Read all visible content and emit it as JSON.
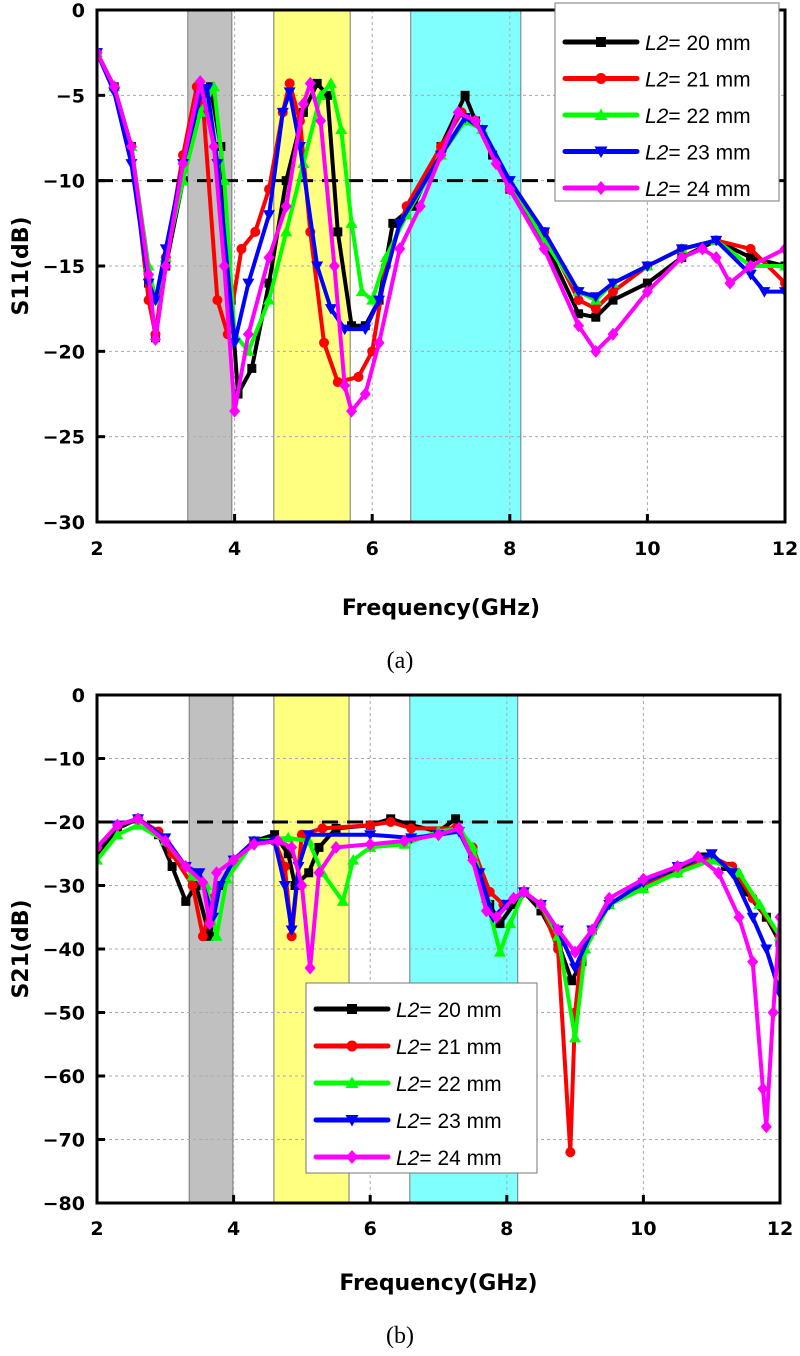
{
  "chart_data": [
    {
      "type": "line",
      "caption": "(a)",
      "xlabel": "Frequency(GHz)",
      "ylabel": "S11(dB)",
      "xlim": [
        2,
        12
      ],
      "ylim": [
        -30,
        0
      ],
      "xticks": [
        2,
        4,
        6,
        8,
        10,
        12
      ],
      "yticks": [
        0,
        -5,
        -10,
        -15,
        -20,
        -25,
        -30
      ],
      "grid": true,
      "threshold": -10,
      "legend_position": "top-right",
      "bands": [
        {
          "from": 3.32,
          "to": 3.96,
          "color": "#c0c0c0"
        },
        {
          "from": 4.57,
          "to": 5.68,
          "color": "#ffff80"
        },
        {
          "from": 6.56,
          "to": 8.16,
          "color": "#80ffff"
        }
      ],
      "series": [
        {
          "name": "L2= 20 mm",
          "color": "#000000",
          "marker": "square",
          "x": [
            2,
            2.25,
            2.5,
            2.75,
            2.85,
            3.0,
            3.25,
            3.5,
            3.65,
            3.8,
            3.95,
            4.05,
            4.25,
            4.5,
            4.75,
            5.0,
            5.2,
            5.35,
            5.5,
            5.7,
            5.9,
            6.1,
            6.3,
            6.6,
            7.0,
            7.35,
            7.5,
            7.75,
            8.0,
            8.5,
            9.0,
            9.25,
            9.5,
            10.0,
            10.5,
            11.0,
            11.5,
            12
          ],
          "y": [
            -2.5,
            -4.5,
            -8,
            -16,
            -19.2,
            -15,
            -10,
            -5.5,
            -4.5,
            -8,
            -17,
            -22.5,
            -21,
            -16,
            -10,
            -6,
            -4.3,
            -5,
            -13,
            -18.5,
            -18.5,
            -17,
            -12.5,
            -11.5,
            -8,
            -5,
            -6.5,
            -8.5,
            -10.5,
            -13.5,
            -17.8,
            -18,
            -17,
            -16,
            -14.5,
            -13.5,
            -14.5,
            -15
          ]
        },
        {
          "name": "L2= 21 mm",
          "color": "#ff0000",
          "marker": "circle",
          "x": [
            2,
            2.25,
            2.5,
            2.75,
            2.85,
            3.0,
            3.25,
            3.45,
            3.55,
            3.75,
            3.9,
            4.1,
            4.3,
            4.5,
            4.7,
            4.8,
            4.95,
            5.1,
            5.3,
            5.5,
            5.8,
            6.0,
            6.2,
            6.5,
            7.0,
            7.3,
            7.5,
            8.0,
            8.5,
            9.0,
            9.25,
            9.5,
            10,
            10.5,
            11,
            11.5,
            12
          ],
          "y": [
            -2.5,
            -4.5,
            -8,
            -17,
            -19,
            -14.5,
            -8.5,
            -4.5,
            -6,
            -17,
            -19,
            -14,
            -13,
            -10.5,
            -6,
            -4.3,
            -6.5,
            -13,
            -19.5,
            -21.8,
            -21.5,
            -20,
            -15,
            -11.5,
            -8,
            -6,
            -6.5,
            -10.5,
            -13,
            -17,
            -17.5,
            -16.5,
            -15,
            -14,
            -13.5,
            -14,
            -16
          ]
        },
        {
          "name": "L2= 22 mm",
          "color": "#00ff00",
          "marker": "triangle-up",
          "x": [
            2,
            2.25,
            2.5,
            2.75,
            2.85,
            3.0,
            3.25,
            3.5,
            3.7,
            3.85,
            4.0,
            4.2,
            4.5,
            4.75,
            5.0,
            5.25,
            5.4,
            5.55,
            5.7,
            5.85,
            6.0,
            6.2,
            6.5,
            7.0,
            7.35,
            7.6,
            8.0,
            8.5,
            9.0,
            9.25,
            9.5,
            10,
            10.5,
            11,
            11.5,
            12
          ],
          "y": [
            -2.5,
            -4.5,
            -8,
            -15,
            -17,
            -14.5,
            -10,
            -6,
            -4.5,
            -10,
            -19,
            -20,
            -17,
            -13,
            -9,
            -5,
            -4.3,
            -7,
            -12.5,
            -16.5,
            -17,
            -14.5,
            -12,
            -8.5,
            -6.5,
            -7,
            -10,
            -13.5,
            -16.5,
            -17,
            -16,
            -15,
            -14,
            -13.5,
            -15,
            -15
          ]
        },
        {
          "name": "L2= 23 mm",
          "color": "#0000ff",
          "marker": "triangle-down",
          "x": [
            2,
            2.25,
            2.5,
            2.75,
            2.85,
            3.0,
            3.25,
            3.5,
            3.6,
            3.75,
            4.0,
            4.2,
            4.5,
            4.7,
            4.8,
            4.95,
            5.2,
            5.4,
            5.6,
            5.9,
            6.1,
            6.4,
            7.0,
            7.35,
            7.6,
            8.0,
            8.5,
            9.0,
            9.25,
            9.5,
            10,
            10.5,
            11,
            11.5,
            11.7,
            12
          ],
          "y": [
            -2.5,
            -4.8,
            -9,
            -16,
            -17,
            -14,
            -9,
            -5,
            -4.6,
            -9,
            -19.5,
            -16,
            -12,
            -6,
            -4.8,
            -8,
            -15,
            -17.5,
            -18.7,
            -18.7,
            -17,
            -12.5,
            -8.5,
            -6.3,
            -7,
            -10,
            -13,
            -16.5,
            -16.8,
            -16,
            -15,
            -14,
            -13.5,
            -15.5,
            -16.5,
            -16.5
          ]
        },
        {
          "name": "L2= 24 mm",
          "color": "#ff00ff",
          "marker": "diamond",
          "x": [
            2,
            2.25,
            2.5,
            2.75,
            2.85,
            3.0,
            3.25,
            3.5,
            3.7,
            3.85,
            4.0,
            4.2,
            4.5,
            4.75,
            5.0,
            5.1,
            5.25,
            5.45,
            5.6,
            5.7,
            5.9,
            6.1,
            6.4,
            6.7,
            7.0,
            7.25,
            7.5,
            7.8,
            8.0,
            8.5,
            9.0,
            9.25,
            9.5,
            10,
            10.5,
            10.8,
            11,
            11.2,
            11.5,
            12
          ],
          "y": [
            -2.5,
            -4.5,
            -8,
            -15.5,
            -19.3,
            -15,
            -9,
            -4.2,
            -8,
            -15,
            -23.5,
            -19,
            -14.5,
            -11.5,
            -5.5,
            -4.3,
            -6.5,
            -15,
            -22,
            -23.5,
            -22.5,
            -19.5,
            -14,
            -11.5,
            -8.5,
            -6,
            -6.5,
            -9,
            -10.5,
            -14,
            -18.5,
            -20,
            -19,
            -16.5,
            -14.5,
            -14,
            -14.5,
            -16,
            -15,
            -14
          ]
        }
      ]
    },
    {
      "type": "line",
      "caption": "(b)",
      "xlabel": "Frequency(GHz)",
      "ylabel": "S21(dB)",
      "xlim": [
        2,
        12
      ],
      "ylim": [
        -80,
        0
      ],
      "xticks": [
        2,
        4,
        6,
        8,
        10,
        12
      ],
      "yticks": [
        0,
        -10,
        -20,
        -30,
        -40,
        -50,
        -60,
        -70,
        -80
      ],
      "grid": true,
      "threshold": -20,
      "legend_position": "bottom-center",
      "bands": [
        {
          "from": 3.35,
          "to": 3.99,
          "color": "#c0c0c0"
        },
        {
          "from": 4.59,
          "to": 5.69,
          "color": "#ffff80"
        },
        {
          "from": 6.58,
          "to": 8.16,
          "color": "#80ffff"
        }
      ],
      "series": [
        {
          "name": "L2= 20 mm",
          "color": "#000000",
          "marker": "square",
          "x": [
            2,
            2.3,
            2.6,
            2.9,
            3.1,
            3.3,
            3.45,
            3.65,
            3.8,
            4.0,
            4.3,
            4.6,
            4.8,
            4.9,
            5.1,
            5.25,
            5.5,
            6.0,
            6.3,
            6.6,
            7.0,
            7.25,
            7.5,
            7.75,
            7.9,
            8.1,
            8.25,
            8.5,
            8.75,
            8.95,
            9.1,
            9.25,
            9.5,
            10,
            10.5,
            10.9,
            11.2,
            11.5,
            11.8,
            12
          ],
          "y": [
            -25,
            -21,
            -19.5,
            -22,
            -27,
            -32.5,
            -30,
            -38,
            -30,
            -26,
            -23,
            -22,
            -25,
            -30,
            -28,
            -24,
            -21,
            -20.5,
            -19.5,
            -20.5,
            -21.5,
            -19.5,
            -25,
            -33,
            -36,
            -33,
            -31,
            -34,
            -39,
            -45,
            -42,
            -37,
            -33,
            -30,
            -27.5,
            -25.5,
            -27,
            -31,
            -35,
            -39
          ]
        },
        {
          "name": "L2= 21 mm",
          "color": "#ff0000",
          "marker": "circle",
          "x": [
            2,
            2.3,
            2.6,
            2.9,
            3.1,
            3.4,
            3.55,
            3.7,
            4.0,
            4.3,
            4.6,
            4.75,
            4.85,
            5.0,
            5.3,
            6.0,
            6.3,
            6.6,
            7.25,
            7.5,
            7.75,
            7.95,
            8.25,
            8.5,
            8.75,
            8.93,
            9.0,
            9.1,
            9.5,
            10,
            10.5,
            11,
            11.3,
            11.6,
            12
          ],
          "y": [
            -24,
            -20.5,
            -19.5,
            -21.5,
            -25,
            -30,
            -38,
            -32,
            -26,
            -23,
            -23,
            -27,
            -38,
            -22,
            -21,
            -20.5,
            -20,
            -21,
            -21,
            -24,
            -31,
            -33,
            -31,
            -33,
            -40,
            -72,
            -50,
            -40,
            -33,
            -30,
            -28,
            -25.5,
            -27,
            -32,
            -38
          ]
        },
        {
          "name": "L2= 22 mm",
          "color": "#00ff00",
          "marker": "triangle-up",
          "x": [
            2,
            2.3,
            2.6,
            3.0,
            3.4,
            3.6,
            3.75,
            3.9,
            4.3,
            4.8,
            5.1,
            5.3,
            5.6,
            5.75,
            6.0,
            6.5,
            7.0,
            7.3,
            7.5,
            7.7,
            7.9,
            8.05,
            8.25,
            8.5,
            8.75,
            9.0,
            9.15,
            9.5,
            10,
            10.5,
            11,
            11.4,
            11.7,
            12
          ],
          "y": [
            -26,
            -22,
            -20.5,
            -23,
            -28.5,
            -30,
            -38,
            -29,
            -23,
            -22.5,
            -23,
            -28,
            -32.5,
            -26,
            -24,
            -23.5,
            -21.5,
            -21,
            -24,
            -32,
            -40.5,
            -36,
            -31,
            -33,
            -38,
            -54,
            -40,
            -33,
            -30.5,
            -28,
            -26,
            -28,
            -33,
            -38
          ]
        },
        {
          "name": "L2= 23 mm",
          "color": "#0000ff",
          "marker": "triangle-down",
          "x": [
            2,
            2.3,
            2.6,
            3.0,
            3.3,
            3.5,
            3.7,
            3.8,
            4.0,
            4.3,
            4.6,
            4.75,
            4.85,
            4.95,
            5.1,
            6.0,
            6.6,
            7.0,
            7.3,
            7.6,
            7.8,
            8.0,
            8.25,
            8.5,
            8.75,
            9.0,
            9.25,
            9.5,
            10,
            10.5,
            11,
            11.3,
            11.6,
            11.8,
            12
          ],
          "y": [
            -24,
            -20.5,
            -19.5,
            -22.5,
            -27,
            -28,
            -35,
            -30,
            -26,
            -23,
            -23,
            -30,
            -37,
            -27,
            -22,
            -22,
            -22.5,
            -22,
            -21.5,
            -28,
            -35,
            -33,
            -31,
            -33,
            -37,
            -43,
            -37,
            -33,
            -29.5,
            -27,
            -25,
            -28,
            -35,
            -40,
            -47
          ]
        },
        {
          "name": "L2= 24 mm",
          "color": "#ff00ff",
          "marker": "diamond",
          "x": [
            2,
            2.3,
            2.6,
            3.0,
            3.3,
            3.55,
            3.65,
            3.75,
            4.0,
            4.3,
            4.65,
            4.85,
            5.0,
            5.12,
            5.25,
            5.5,
            6.0,
            6.5,
            7.0,
            7.3,
            7.5,
            7.7,
            7.85,
            8.1,
            8.25,
            8.5,
            8.75,
            9.0,
            9.25,
            9.5,
            10,
            10.5,
            10.8,
            11.1,
            11.4,
            11.6,
            11.75,
            11.8,
            11.9,
            12
          ],
          "y": [
            -24,
            -20.5,
            -19.5,
            -23,
            -27,
            -29.5,
            -36,
            -28,
            -26,
            -23.5,
            -23,
            -24,
            -30,
            -43,
            -28,
            -24,
            -23.5,
            -23,
            -22,
            -21,
            -26,
            -34,
            -35,
            -32,
            -31,
            -33,
            -37,
            -40.5,
            -37,
            -32,
            -29,
            -27,
            -25.5,
            -28,
            -35,
            -42,
            -62,
            -68,
            -50,
            -35
          ]
        }
      ]
    }
  ]
}
